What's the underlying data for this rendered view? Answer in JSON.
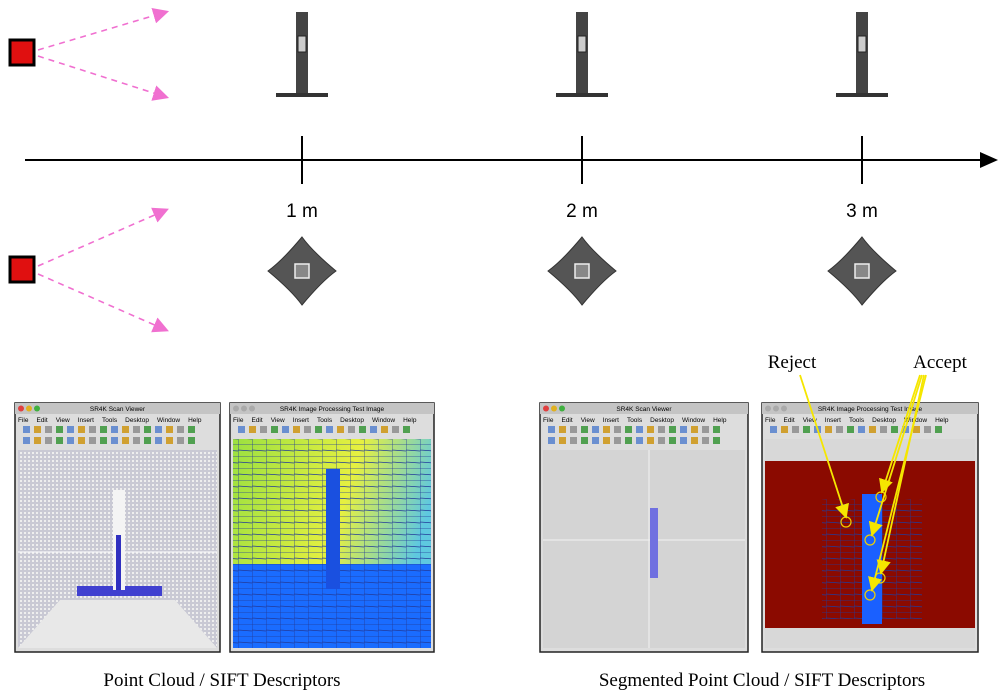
{
  "axis": {
    "ticks": [
      "1 m",
      "2 m",
      "3 m"
    ]
  },
  "windows": [
    {
      "title": "SR4K Scan Viewer"
    },
    {
      "title": "SR4K Image Processing Test Image"
    },
    {
      "title": "SR4K Scan Viewer"
    },
    {
      "title": "SR4K Image Processing Test Image"
    }
  ],
  "menu": [
    "File",
    "Edit",
    "View",
    "Insert",
    "Tools",
    "Desktop",
    "Window",
    "Help"
  ],
  "annotations": {
    "reject": "Reject",
    "accept": "Accept"
  },
  "captions": [
    "Point Cloud / SIFT Descriptors",
    "Segmented Point Cloud / SIFT Descriptors"
  ]
}
